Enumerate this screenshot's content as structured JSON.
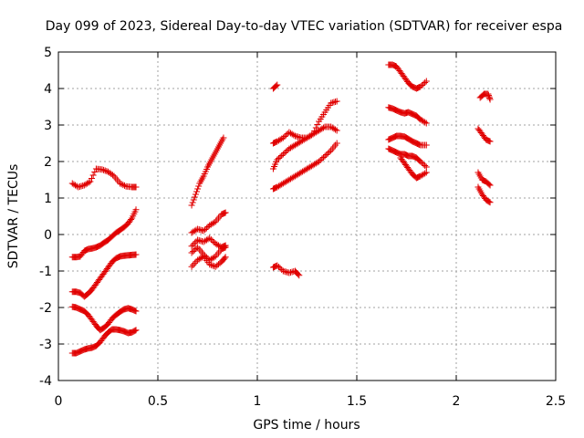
{
  "chart_data": {
    "type": "scatter",
    "title": "Day 099 of 2023, Sidereal Day-to-day VTEC variation (SDTVAR) for receiver espa",
    "xlabel": "GPS time / hours",
    "ylabel": "SDTVAR / TECUs",
    "xlim": [
      0,
      2.5
    ],
    "ylim": [
      -4,
      5
    ],
    "xticks": [
      {
        "value": 0,
        "label": "0"
      },
      {
        "value": 0.5,
        "label": "0.5"
      },
      {
        "value": 1,
        "label": "1"
      },
      {
        "value": 1.5,
        "label": "1.5"
      },
      {
        "value": 2,
        "label": "2"
      },
      {
        "value": 2.5,
        "label": "2.5"
      }
    ],
    "yticks": [
      {
        "value": -4,
        "label": "-4"
      },
      {
        "value": -3,
        "label": "-3"
      },
      {
        "value": -2,
        "label": "-2"
      },
      {
        "value": -1,
        "label": "-1"
      },
      {
        "value": 0,
        "label": "0"
      },
      {
        "value": 1,
        "label": "1"
      },
      {
        "value": 2,
        "label": "2"
      },
      {
        "value": 3,
        "label": "3"
      },
      {
        "value": 4,
        "label": "4"
      },
      {
        "value": 5,
        "label": "5"
      }
    ],
    "grid": true,
    "marker": "plus",
    "color": "#e00000",
    "tracks": [
      {
        "x": [
          0.07,
          0.1,
          0.13,
          0.16,
          0.19,
          0.22,
          0.25,
          0.28,
          0.31,
          0.34,
          0.37,
          0.39
        ],
        "y": [
          1.4,
          1.3,
          1.35,
          1.45,
          1.8,
          1.78,
          1.72,
          1.6,
          1.4,
          1.32,
          1.3,
          1.3
        ]
      },
      {
        "x": [
          0.07,
          0.09,
          0.11,
          0.13,
          0.15,
          0.17,
          0.19,
          0.21,
          0.23,
          0.25,
          0.27,
          0.29,
          0.31,
          0.33,
          0.35,
          0.37,
          0.39
        ],
        "y": [
          -0.62,
          -0.62,
          -0.6,
          -0.45,
          -0.4,
          -0.38,
          -0.35,
          -0.3,
          -0.22,
          -0.15,
          -0.05,
          0.05,
          0.12,
          0.2,
          0.3,
          0.45,
          0.68
        ]
      },
      {
        "x": [
          0.07,
          0.09,
          0.11,
          0.13,
          0.15,
          0.17,
          0.19,
          0.21,
          0.23,
          0.25,
          0.27,
          0.29,
          0.31,
          0.33,
          0.35,
          0.37,
          0.39
        ],
        "y": [
          -1.57,
          -1.57,
          -1.6,
          -1.7,
          -1.62,
          -1.5,
          -1.35,
          -1.2,
          -1.05,
          -0.9,
          -0.75,
          -0.65,
          -0.6,
          -0.58,
          -0.57,
          -0.56,
          -0.55
        ]
      },
      {
        "x": [
          0.07,
          0.09,
          0.11,
          0.13,
          0.15,
          0.17,
          0.19,
          0.21,
          0.23,
          0.25,
          0.27,
          0.29,
          0.31,
          0.33,
          0.35,
          0.37,
          0.39
        ],
        "y": [
          -1.98,
          -2.0,
          -2.05,
          -2.1,
          -2.2,
          -2.35,
          -2.5,
          -2.62,
          -2.55,
          -2.45,
          -2.3,
          -2.2,
          -2.12,
          -2.05,
          -2.02,
          -2.05,
          -2.1
        ]
      },
      {
        "x": [
          0.07,
          0.09,
          0.11,
          0.13,
          0.15,
          0.17,
          0.19,
          0.21,
          0.23,
          0.25,
          0.27,
          0.29,
          0.31,
          0.33,
          0.35,
          0.37,
          0.39
        ],
        "y": [
          -3.25,
          -3.25,
          -3.2,
          -3.15,
          -3.12,
          -3.1,
          -3.05,
          -2.95,
          -2.8,
          -2.68,
          -2.6,
          -2.6,
          -2.62,
          -2.65,
          -2.7,
          -2.68,
          -2.62
        ]
      },
      {
        "x": [
          0.67,
          0.69,
          0.71,
          0.73,
          0.75,
          0.77,
          0.79,
          0.81,
          0.83
        ],
        "y": [
          0.8,
          1.1,
          1.4,
          1.6,
          1.85,
          2.05,
          2.25,
          2.45,
          2.65
        ]
      },
      {
        "x": [
          0.67,
          0.7,
          0.73,
          0.76,
          0.79,
          0.82,
          0.84
        ],
        "y": [
          0.05,
          0.15,
          0.1,
          0.25,
          0.35,
          0.55,
          0.6
        ]
      },
      {
        "x": [
          0.67,
          0.7,
          0.73,
          0.76,
          0.79,
          0.82,
          0.84
        ],
        "y": [
          -0.32,
          -0.15,
          -0.2,
          -0.1,
          -0.25,
          -0.35,
          -0.3
        ]
      },
      {
        "x": [
          0.67,
          0.7,
          0.73,
          0.76,
          0.79,
          0.82,
          0.84
        ],
        "y": [
          -0.5,
          -0.35,
          -0.55,
          -0.7,
          -0.6,
          -0.4,
          -0.35
        ]
      },
      {
        "x": [
          0.67,
          0.7,
          0.73,
          0.76,
          0.79,
          0.82,
          0.84
        ],
        "y": [
          -0.88,
          -0.7,
          -0.6,
          -0.82,
          -0.88,
          -0.75,
          -0.62
        ]
      },
      {
        "x": [
          1.08,
          1.1
        ],
        "y": [
          4.0,
          4.1
        ]
      },
      {
        "x": [
          1.08,
          1.1,
          1.13,
          1.16,
          1.19,
          1.22,
          1.25,
          1.28,
          1.31,
          1.34,
          1.37,
          1.4
        ],
        "y": [
          2.5,
          2.55,
          2.65,
          2.8,
          2.7,
          2.65,
          2.65,
          2.75,
          3.1,
          3.35,
          3.6,
          3.65
        ]
      },
      {
        "x": [
          1.08,
          1.1,
          1.13,
          1.16,
          1.19,
          1.22,
          1.25,
          1.28,
          1.31,
          1.34,
          1.37,
          1.4
        ],
        "y": [
          1.8,
          2.05,
          2.2,
          2.35,
          2.45,
          2.55,
          2.65,
          2.75,
          2.85,
          2.95,
          2.95,
          2.85
        ]
      },
      {
        "x": [
          1.08,
          1.1,
          1.13,
          1.16,
          1.19,
          1.22,
          1.25,
          1.28,
          1.31,
          1.34,
          1.37,
          1.4
        ],
        "y": [
          1.25,
          1.3,
          1.4,
          1.5,
          1.6,
          1.7,
          1.8,
          1.9,
          2.0,
          2.15,
          2.3,
          2.5
        ]
      },
      {
        "x": [
          1.08,
          1.1,
          1.13,
          1.16,
          1.19,
          1.21
        ],
        "y": [
          -0.9,
          -0.85,
          -1.0,
          -1.05,
          -1.0,
          -1.12
        ]
      },
      {
        "x": [
          1.66,
          1.68,
          1.7,
          1.72,
          1.74,
          1.76,
          1.78,
          1.8,
          1.82,
          1.85
        ],
        "y": [
          4.65,
          4.65,
          4.6,
          4.45,
          4.3,
          4.15,
          4.05,
          4.0,
          4.05,
          4.2
        ]
      },
      {
        "x": [
          1.66,
          1.68,
          1.7,
          1.72,
          1.74,
          1.76,
          1.78,
          1.8,
          1.82,
          1.85
        ],
        "y": [
          3.48,
          3.45,
          3.4,
          3.35,
          3.32,
          3.35,
          3.3,
          3.25,
          3.15,
          3.05
        ]
      },
      {
        "x": [
          1.66,
          1.68,
          1.7,
          1.72,
          1.74,
          1.76,
          1.78,
          1.8,
          1.82,
          1.85
        ],
        "y": [
          2.6,
          2.65,
          2.7,
          2.7,
          2.68,
          2.62,
          2.55,
          2.5,
          2.45,
          2.45
        ]
      },
      {
        "x": [
          1.66,
          1.68,
          1.7,
          1.72,
          1.74,
          1.76,
          1.78,
          1.8,
          1.82,
          1.85
        ],
        "y": [
          2.35,
          2.3,
          2.25,
          2.2,
          2.2,
          2.15,
          2.15,
          2.1,
          2.0,
          1.85
        ]
      },
      {
        "x": [
          1.72,
          1.74,
          1.76,
          1.78,
          1.8,
          1.82,
          1.85
        ],
        "y": [
          2.1,
          1.95,
          1.8,
          1.65,
          1.55,
          1.6,
          1.7
        ]
      },
      {
        "x": [
          2.12,
          2.14,
          2.16,
          2.17
        ],
        "y": [
          3.75,
          3.85,
          3.85,
          3.7
        ]
      },
      {
        "x": [
          2.11,
          2.13,
          2.15,
          2.17
        ],
        "y": [
          2.9,
          2.75,
          2.6,
          2.55
        ]
      },
      {
        "x": [
          2.11,
          2.13,
          2.15,
          2.17
        ],
        "y": [
          1.7,
          1.5,
          1.45,
          1.35
        ]
      },
      {
        "x": [
          2.11,
          2.13,
          2.15,
          2.17
        ],
        "y": [
          1.3,
          1.1,
          0.95,
          0.88
        ]
      }
    ]
  }
}
